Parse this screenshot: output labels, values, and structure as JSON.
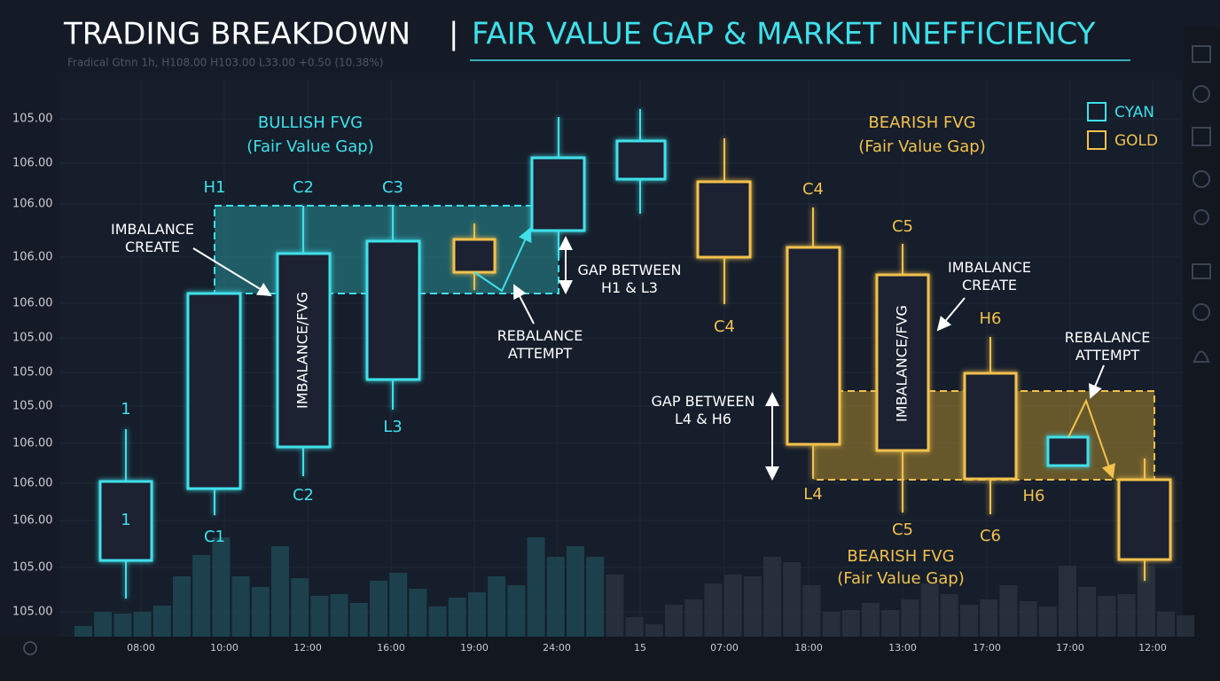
{
  "header": {
    "title_left": "TRADING BREAKDOWN",
    "separator": "|",
    "title_right": "FAIR VALUE GAP & MARKET INEFFICIENCY",
    "ticker": "Fradical Gtnn  1h,  H108.00 H103.00 L33.00 +0.50 (10.38%)"
  },
  "y_axis_labels": [
    "105.00",
    "106.00",
    "106.00",
    "106.00",
    "106.00",
    "105.00",
    "105.00",
    "105.00",
    "106.00",
    "106.00",
    "106.00",
    "105.00",
    "105.00"
  ],
  "x_axis_labels": [
    "08:00",
    "10:00",
    "12:00",
    "16:00",
    "19:00",
    "24:00",
    "15",
    "07:00",
    "18:00",
    "13:00",
    "17:00",
    "17:00",
    "12:00"
  ],
  "legend": [
    {
      "label": "CYAN",
      "color": "#3fe0ea"
    },
    {
      "label": "GOLD",
      "color": "#f2c14e"
    }
  ],
  "bullish": {
    "title": "BULLISH FVG",
    "subtitle": "(Fair Value Gap)",
    "imbalance": "IMBALANCE\nCREATE",
    "gap": "GAP BETWEEN\nH1 & L3",
    "rebalance": "REBALANCE\nATTEMPT",
    "body_text": "IMBALANCE/FVG",
    "labels": [
      "1",
      "1",
      "C1",
      "H1",
      "C2",
      "C2",
      "C3",
      "L3"
    ]
  },
  "bearish": {
    "title": "BEARISH FVG",
    "subtitle": "(Fair Value Gap)",
    "title_low": "BEARISH FVG",
    "subtitle_low": "(Fair Value Gap)",
    "imbalance": "IMBALANCE\nCREATE",
    "gap": "GAP BETWEEN\nL4 & H6",
    "rebalance": "REBALANCE\nATTEMPT",
    "body_text": "IMBALANCE/FVG",
    "labels": [
      "C4",
      "C4",
      "L4",
      "C5",
      "C5",
      "H6",
      "C6",
      "H6"
    ]
  }
}
